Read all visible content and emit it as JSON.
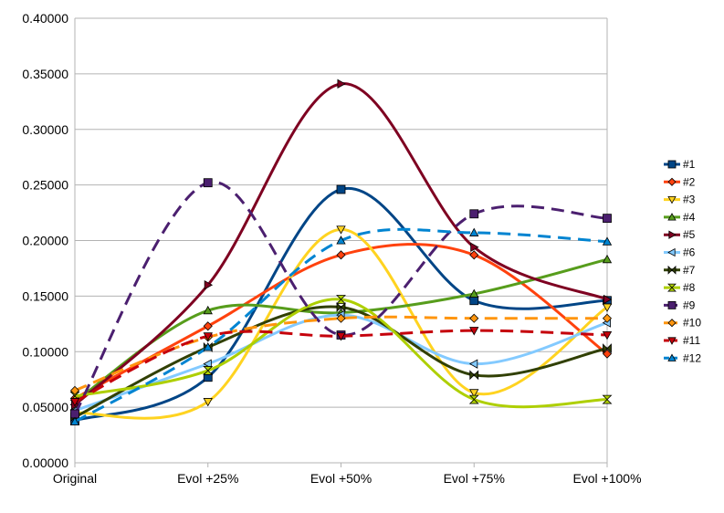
{
  "chart_data": {
    "type": "line",
    "smooth": true,
    "categories": [
      "Original",
      "Evol +25%",
      "Evol +50%",
      "Evol +75%",
      "Evol +100%"
    ],
    "ylim": [
      0,
      0.4
    ],
    "yticks": [
      "0.00000",
      "0.05000",
      "0.10000",
      "0.15000",
      "0.20000",
      "0.25000",
      "0.30000",
      "0.35000",
      "0.40000"
    ],
    "grid": "horizontal",
    "legend": "right",
    "series": [
      {
        "name": "#1",
        "values": [
          0.038,
          0.077,
          0.246,
          0.146,
          0.146
        ],
        "color": "#004586",
        "marker": "square",
        "dashed": false
      },
      {
        "name": "#2",
        "values": [
          0.058,
          0.123,
          0.187,
          0.187,
          0.098
        ],
        "color": "#ff420e",
        "marker": "diamond",
        "dashed": false
      },
      {
        "name": "#3",
        "values": [
          0.045,
          0.055,
          0.21,
          0.063,
          0.14
        ],
        "color": "#ffd320",
        "marker": "tri-down",
        "dashed": false
      },
      {
        "name": "#4",
        "values": [
          0.055,
          0.137,
          0.135,
          0.152,
          0.183
        ],
        "color": "#579d1c",
        "marker": "tri-up",
        "dashed": false
      },
      {
        "name": "#5",
        "values": [
          0.052,
          0.16,
          0.341,
          0.194,
          0.147
        ],
        "color": "#7e0021",
        "marker": "tri-right",
        "dashed": false
      },
      {
        "name": "#6",
        "values": [
          0.047,
          0.089,
          0.133,
          0.089,
          0.126
        ],
        "color": "#83caff",
        "marker": "tri-left",
        "dashed": false
      },
      {
        "name": "#7",
        "values": [
          0.041,
          0.104,
          0.14,
          0.079,
          0.103
        ],
        "color": "#314004",
        "marker": "bowtie",
        "dashed": false
      },
      {
        "name": "#8",
        "values": [
          0.06,
          0.083,
          0.147,
          0.057,
          0.057
        ],
        "color": "#aecf00",
        "marker": "hourglass",
        "dashed": false
      },
      {
        "name": "#9",
        "values": [
          0.044,
          0.252,
          0.115,
          0.224,
          0.22
        ],
        "color": "#4b1f6f",
        "marker": "square",
        "dashed": true
      },
      {
        "name": "#10",
        "values": [
          0.065,
          0.113,
          0.13,
          0.13,
          0.13
        ],
        "color": "#ff950e",
        "marker": "diamond",
        "dashed": true
      },
      {
        "name": "#11",
        "values": [
          0.055,
          0.114,
          0.114,
          0.119,
          0.115
        ],
        "color": "#c5000b",
        "marker": "tri-down",
        "dashed": true
      },
      {
        "name": "#12",
        "values": [
          0.037,
          0.104,
          0.2,
          0.207,
          0.199
        ],
        "color": "#0084d1",
        "marker": "tri-up",
        "dashed": true
      }
    ]
  }
}
